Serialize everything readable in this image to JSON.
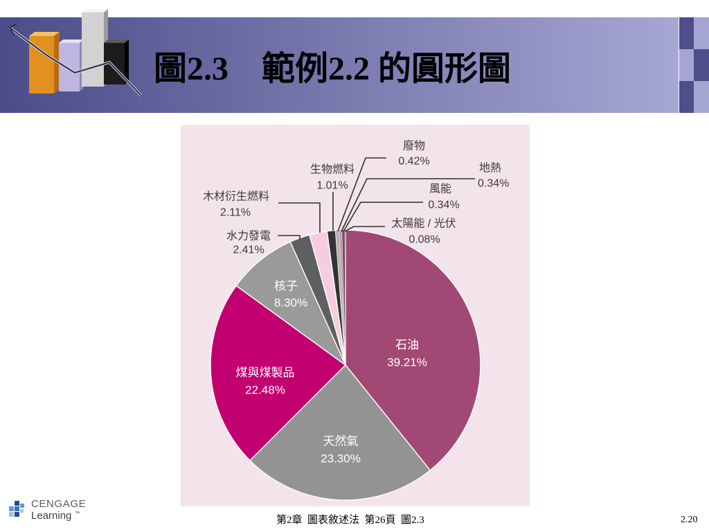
{
  "slide": {
    "title": "圖2.3　範例2.2 的圓形圖"
  },
  "footer": {
    "caption": "第2章  圖表敘述法  第26頁  圖2.3",
    "page_number": "2.20",
    "logo_brand": "CENGAGE",
    "logo_sub": "Learning",
    "logo_tm": "™"
  },
  "icons": {
    "header_logo": "3d-bar-chart-icon",
    "footer_logo": "cengage-squares-icon"
  },
  "colors": {
    "header_left": "#4b4c89",
    "header_right": "#a6a7d3",
    "chart_background": "#f3e4ec",
    "outside_label_text": "#3a3a3a",
    "inside_label_text": "#ffffff",
    "slice_border": "#ffffff"
  },
  "chart_data": {
    "type": "pie",
    "slices": [
      {
        "label": "石油",
        "value": 39.21,
        "value_label": "39.21%",
        "color": "#a14874"
      },
      {
        "label": "天然氣",
        "value": 23.3,
        "value_label": "23.30%",
        "color": "#939393"
      },
      {
        "label": "煤與煤製品",
        "value": 22.48,
        "value_label": "22.48%",
        "color": "#c3006f"
      },
      {
        "label": "核子",
        "value": 8.3,
        "value_label": "8.30%",
        "color": "#9a9a9a"
      },
      {
        "label": "水力發電",
        "value": 2.41,
        "value_label": "2.41%",
        "color": "#5e5f61"
      },
      {
        "label": "木材衍生燃料",
        "value": 2.11,
        "value_label": "2.11%",
        "color": "#f6cde0"
      },
      {
        "label": "生物燃料",
        "value": 1.01,
        "value_label": "1.01%",
        "color": "#333333"
      },
      {
        "label": "廢物",
        "value": 0.42,
        "value_label": "0.42%",
        "color": "#b0b0b0"
      },
      {
        "label": "地熱",
        "value": 0.34,
        "value_label": "0.34%",
        "color": "#d98ab3"
      },
      {
        "label": "風能",
        "value": 0.34,
        "value_label": "0.34%",
        "color": "#58595b"
      },
      {
        "label": "太陽能 / 光伏",
        "value": 0.08,
        "value_label": "0.08%",
        "color": "#c3006f"
      }
    ]
  }
}
